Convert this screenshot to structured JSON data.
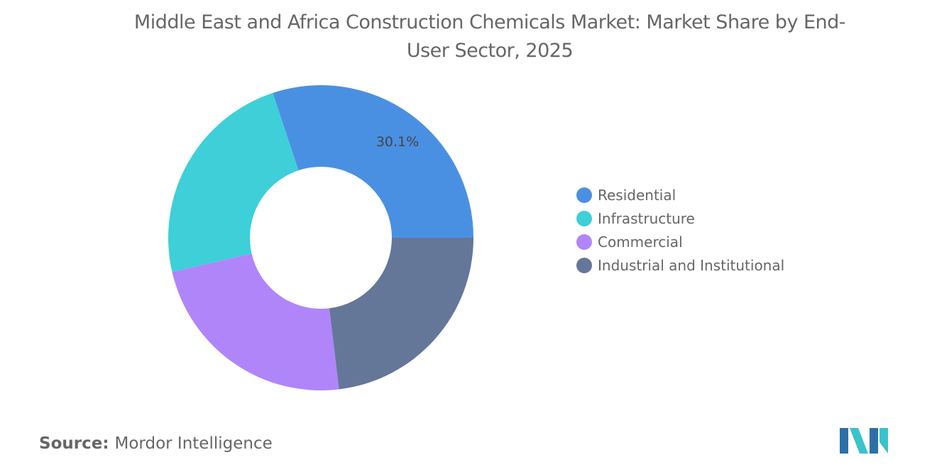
{
  "chart_data": {
    "type": "pie",
    "donut": true,
    "title": "Middle East and Africa Construction Chemicals Market: Market Share by End-User Sector, 2025",
    "categories": [
      "Residential",
      "Infrastructure",
      "Commercial",
      "Industrial and Institutional"
    ],
    "values": [
      30.1,
      23.5,
      23.3,
      23.1
    ],
    "unit": "%",
    "data_labels": [
      "30.1%"
    ],
    "colors": [
      "#4a90e2",
      "#3ecfd8",
      "#b085fa",
      "#647799"
    ],
    "legend_position": "right"
  },
  "source": {
    "label": "Source:",
    "value": "Mordor Intelligence"
  },
  "logo": {
    "name": "Mordor Intelligence logo"
  }
}
